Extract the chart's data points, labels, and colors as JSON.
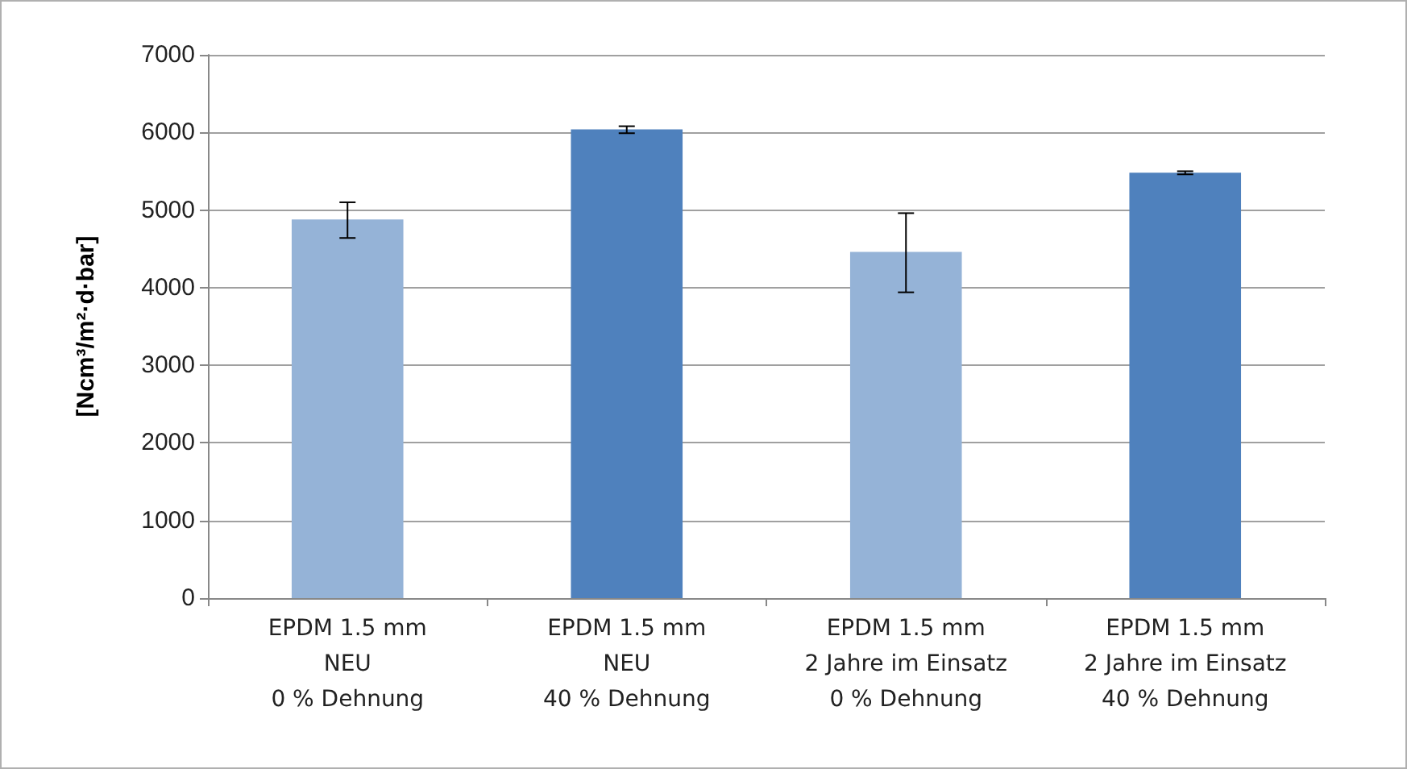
{
  "chart_data": {
    "type": "bar",
    "ylabel": "[Ncm³/m²·d·bar]",
    "categories": [
      "EPDM 1.5 mm\nNEU\n0 % Dehnung",
      "EPDM 1.5 mm\nNEU\n40 % Dehnung",
      "EPDM 1.5 mm\n2 Jahre im Einsatz\n0 % Dehnung",
      "EPDM 1.5 mm\n2 Jahre im Einsatz\n40 % Dehnung"
    ],
    "values": [
      4880,
      6040,
      4460,
      5480
    ],
    "colors": [
      "#95b3d7",
      "#4f81bd",
      "#95b3d7",
      "#4f81bd"
    ],
    "errors": [
      [
        4640,
        5100
      ],
      [
        5990,
        6080
      ],
      [
        3940,
        4960
      ],
      [
        5460,
        5500
      ]
    ],
    "ylim": [
      0,
      7000
    ],
    "yticks": [
      0,
      1000,
      2000,
      3000,
      4000,
      5000,
      6000,
      7000
    ],
    "grid": "y"
  }
}
